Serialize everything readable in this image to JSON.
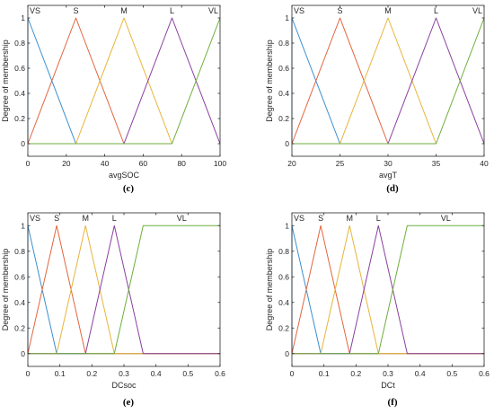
{
  "colors": {
    "VS": "#3a8fd0",
    "S": "#e2653d",
    "M": "#e8b43a",
    "L": "#8a3f9e",
    "VL": "#6fae3c",
    "axis": "#262626"
  },
  "chart_data": [
    {
      "type": "line",
      "panel_label": "(c)",
      "xlabel": "avgSOC",
      "ylabel": "Degree of membership",
      "xlim": [
        0,
        100
      ],
      "ylim": [
        -0.1,
        1.1
      ],
      "xticks": [
        0,
        20,
        40,
        60,
        80,
        100
      ],
      "yticks": [
        0,
        0.2,
        0.4,
        0.6,
        0.8,
        1
      ],
      "grid": false,
      "series": [
        {
          "name": "VS",
          "x": [
            0,
            0,
            25
          ],
          "y": [
            0,
            1,
            0
          ]
        },
        {
          "name": "S",
          "x": [
            0,
            25,
            50
          ],
          "y": [
            0,
            1,
            0
          ]
        },
        {
          "name": "M",
          "x": [
            25,
            50,
            75
          ],
          "y": [
            0,
            1,
            0
          ]
        },
        {
          "name": "L",
          "x": [
            50,
            75,
            100
          ],
          "y": [
            0,
            1,
            0
          ]
        },
        {
          "name": "VL",
          "x": [
            0,
            75,
            100
          ],
          "y": [
            0,
            0,
            1
          ]
        }
      ]
    },
    {
      "type": "line",
      "panel_label": "(d)",
      "xlabel": "avgT",
      "ylabel": "Degree of membership",
      "xlim": [
        20,
        40
      ],
      "ylim": [
        -0.1,
        1.1
      ],
      "xticks": [
        20,
        25,
        30,
        35,
        40
      ],
      "yticks": [
        0,
        0.2,
        0.4,
        0.6,
        0.8,
        1
      ],
      "grid": false,
      "series": [
        {
          "name": "VS",
          "x": [
            20,
            20,
            25
          ],
          "y": [
            0,
            1,
            0
          ]
        },
        {
          "name": "S",
          "x": [
            20,
            25,
            30
          ],
          "y": [
            0,
            1,
            0
          ]
        },
        {
          "name": "M",
          "x": [
            25,
            30,
            35
          ],
          "y": [
            0,
            1,
            0
          ]
        },
        {
          "name": "L",
          "x": [
            30,
            35,
            40
          ],
          "y": [
            0,
            1,
            0
          ]
        },
        {
          "name": "VL",
          "x": [
            20,
            35,
            40
          ],
          "y": [
            0,
            0,
            1
          ]
        }
      ]
    },
    {
      "type": "line",
      "panel_label": "(e)",
      "xlabel": "DCsoc",
      "ylabel": "Degree of membership",
      "xlim": [
        0,
        0.6
      ],
      "ylim": [
        -0.1,
        1.1
      ],
      "xticks": [
        0,
        0.1,
        0.2,
        0.3,
        0.4,
        0.5,
        0.6
      ],
      "yticks": [
        0,
        0.2,
        0.4,
        0.6,
        0.8,
        1
      ],
      "grid": false,
      "series": [
        {
          "name": "VS",
          "x": [
            0,
            0,
            0.09,
            0.6
          ],
          "y": [
            0,
            1,
            0,
            0
          ]
        },
        {
          "name": "S",
          "x": [
            0,
            0.09,
            0.18,
            0.6
          ],
          "y": [
            0,
            1,
            0,
            0
          ]
        },
        {
          "name": "M",
          "x": [
            0,
            0.09,
            0.18,
            0.27,
            0.6
          ],
          "y": [
            0,
            0,
            1,
            0,
            0
          ]
        },
        {
          "name": "L",
          "x": [
            0,
            0.18,
            0.27,
            0.36,
            0.6
          ],
          "y": [
            0,
            0,
            1,
            0,
            0
          ]
        },
        {
          "name": "VL",
          "x": [
            0,
            0.27,
            0.36,
            0.6
          ],
          "y": [
            0,
            0,
            1,
            1
          ]
        }
      ]
    },
    {
      "type": "line",
      "panel_label": "(f)",
      "xlabel": "DCt",
      "ylabel": "Degree of membership",
      "xlim": [
        0,
        0.6
      ],
      "ylim": [
        -0.1,
        1.1
      ],
      "xticks": [
        0,
        0.1,
        0.2,
        0.3,
        0.4,
        0.5,
        0.6
      ],
      "yticks": [
        0,
        0.2,
        0.4,
        0.6,
        0.8,
        1
      ],
      "grid": false,
      "series": [
        {
          "name": "VS",
          "x": [
            0,
            0,
            0.09,
            0.6
          ],
          "y": [
            0,
            1,
            0,
            0
          ]
        },
        {
          "name": "S",
          "x": [
            0,
            0.09,
            0.18,
            0.6
          ],
          "y": [
            0,
            1,
            0,
            0
          ]
        },
        {
          "name": "M",
          "x": [
            0,
            0.09,
            0.18,
            0.27,
            0.6
          ],
          "y": [
            0,
            0,
            1,
            0,
            0
          ]
        },
        {
          "name": "L",
          "x": [
            0,
            0.18,
            0.27,
            0.36,
            0.6
          ],
          "y": [
            0,
            0,
            1,
            0,
            0
          ]
        },
        {
          "name": "VL",
          "x": [
            0,
            0.27,
            0.36,
            0.6
          ],
          "y": [
            0,
            0,
            1,
            1
          ]
        }
      ]
    }
  ]
}
